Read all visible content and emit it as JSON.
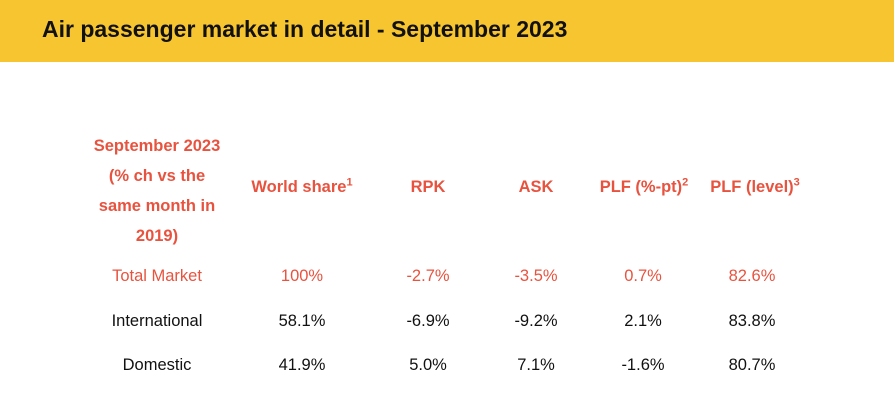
{
  "header": {
    "title": "Air passenger market in detail - September 2023"
  },
  "table": {
    "period_header_lines": [
      "September 2023",
      "(% ch vs the",
      "same month in",
      "2019)"
    ],
    "columns": [
      {
        "label": "World share",
        "note": "1"
      },
      {
        "label": "RPK",
        "note": ""
      },
      {
        "label": "ASK",
        "note": ""
      },
      {
        "label": "PLF (%-pt)",
        "note": "2"
      },
      {
        "label": "PLF (level)",
        "note": "3"
      }
    ],
    "rows": [
      {
        "label": "Total Market",
        "values": [
          "100%",
          "-2.7%",
          "-3.5%",
          "0.7%",
          "82.6%"
        ]
      },
      {
        "label": "International",
        "values": [
          "58.1%",
          "-6.9%",
          "-9.2%",
          "2.1%",
          "83.8%"
        ]
      },
      {
        "label": "Domestic",
        "values": [
          "41.9%",
          "5.0%",
          "7.1%",
          "-1.6%",
          "80.7%"
        ]
      }
    ]
  },
  "colors": {
    "banner": "#f7c52f",
    "accent": "#e8533f"
  }
}
